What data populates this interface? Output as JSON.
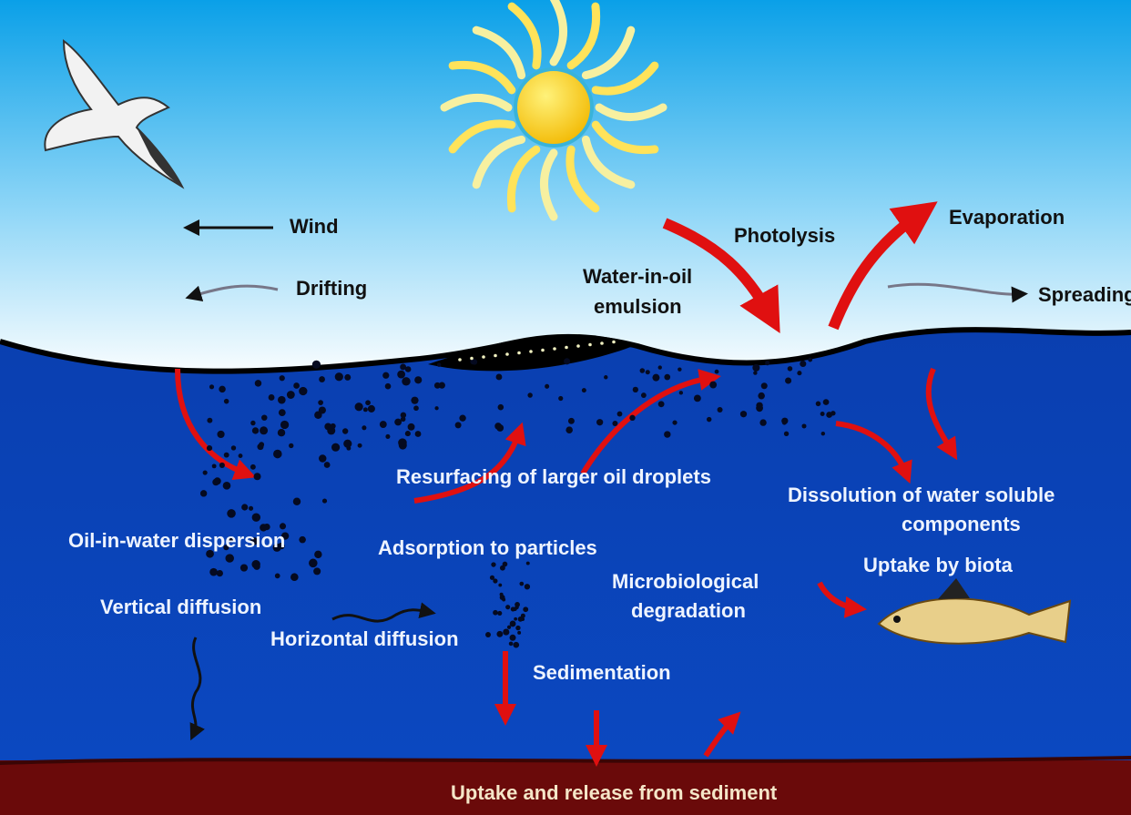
{
  "labels": [
    "Wind",
    "Drifting",
    "Photolysis",
    "Water-in-oil",
    "emulsion",
    "Evaporation",
    "Spreading",
    "Resurfacing of larger oil droplets",
    "Dissolution of water soluble",
    "components",
    "Oil-in-water dispersion",
    "Adsorption to particles",
    "Uptake by biota",
    "Microbiological",
    "degradation",
    "Vertical diffusion",
    "Horizontal diffusion",
    "Sedimentation",
    "Uptake and release from sediment"
  ]
}
